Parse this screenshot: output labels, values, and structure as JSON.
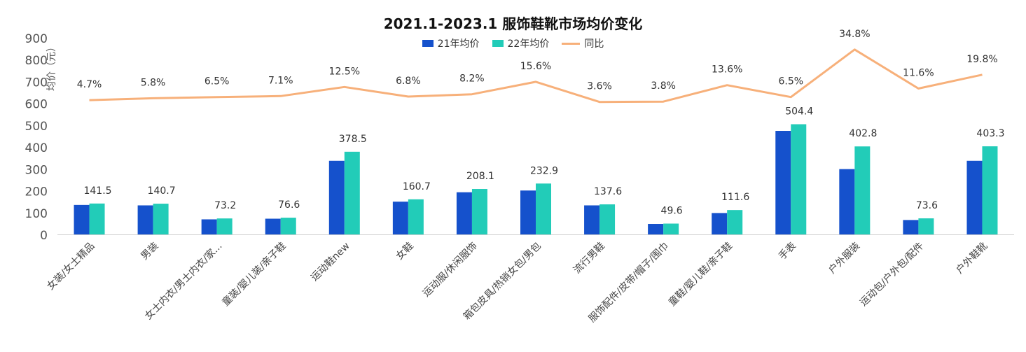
{
  "chart_data": {
    "type": "bar",
    "title": "2021.1-2023.1 服饰鞋靴市场均价变化",
    "ylabel": "均价（元）",
    "xlabel": "",
    "ylim": [
      0,
      900
    ],
    "yticks": [
      "0",
      "100",
      "200",
      "300",
      "400",
      "500",
      "600",
      "700",
      "800",
      "900"
    ],
    "categories": [
      "女装/女士精品",
      "男装",
      "女士内衣/男士内衣/家...",
      "童装/婴儿装/亲子鞋",
      "运动鞋new",
      "女鞋",
      "运动服/休闲服饰",
      "箱包皮具/热销女包/男包",
      "流行男鞋",
      "服饰配件/皮带/帽子/围巾",
      "童鞋/婴儿鞋/亲子鞋",
      "手表",
      "户外服装",
      "运动包/户外包/配件",
      "户外鞋靴"
    ],
    "series": [
      {
        "name": "21年均价",
        "color": "#1551cc",
        "values": [
          135,
          133,
          69,
          72,
          337,
          150,
          193,
          201,
          133,
          48,
          98,
          474,
          299,
          66,
          337
        ]
      },
      {
        "name": "22年均价",
        "color": "#22ccb8",
        "values": [
          141.5,
          140.7,
          73.2,
          76.6,
          378.5,
          160.7,
          208.1,
          232.9,
          137.6,
          49.6,
          111.6,
          504.4,
          402.8,
          73.6,
          403.3
        ]
      },
      {
        "name": "同比",
        "color": "#f7b07a",
        "kind": "line",
        "values": [
          4.7,
          5.8,
          6.5,
          7.1,
          12.5,
          6.8,
          8.2,
          15.6,
          3.6,
          3.8,
          13.6,
          6.5,
          34.8,
          11.6,
          19.8
        ]
      }
    ],
    "bar_labels": [
      "141.5",
      "140.7",
      "73.2",
      "76.6",
      "378.5",
      "160.7",
      "208.1",
      "232.9",
      "137.6",
      "49.6",
      "111.6",
      "504.4",
      "402.8",
      "73.6",
      "403.3"
    ],
    "line_labels": [
      "4.7%",
      "5.8%",
      "6.5%",
      "7.1%",
      "12.5%",
      "6.8%",
      "8.2%",
      "15.6%",
      "3.6%",
      "3.8%",
      "13.6%",
      "6.5%",
      "34.8%",
      "11.6%",
      "19.8%"
    ],
    "legend_placement": "top-center",
    "grid": false
  }
}
